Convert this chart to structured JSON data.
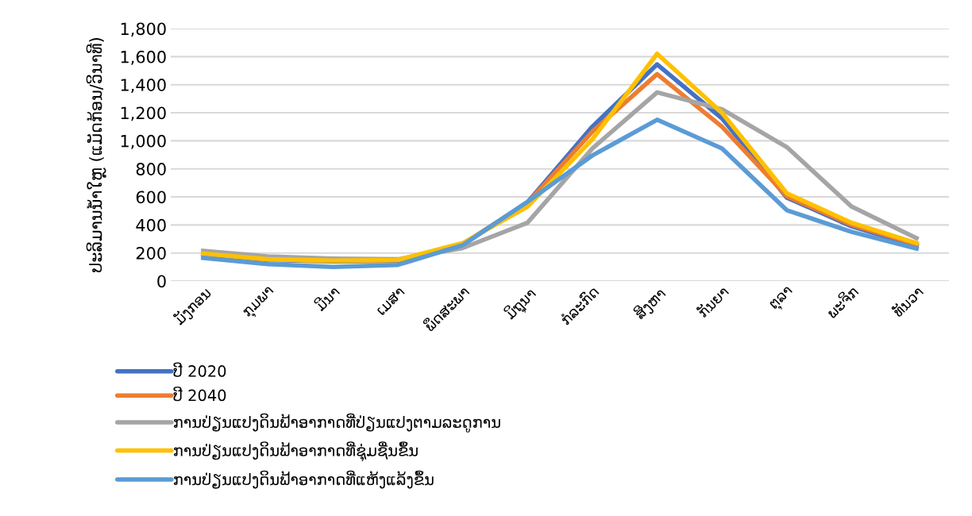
{
  "chart_data": {
    "type": "line",
    "ylabel": "ປະລິມານນ້ຳໃຫຼ (ແມັດກ້ອນ/ວິນາທີ)",
    "categories": [
      "ມັງກອນ",
      "ກຸມພາ",
      "ມີນາ",
      "ເມສາ",
      "ພຶດສະພາ",
      "ມິຖຸນາ",
      "ກໍລະກົດ",
      "ສິງຫາ",
      "ກັນຍາ",
      "ຕຸລາ",
      "ພະຈິກ",
      "ທັນວາ"
    ],
    "series": [
      {
        "name": "ປີ 2020",
        "color": "#4472c4",
        "values": [
          190,
          150,
          140,
          145,
          260,
          560,
          1100,
          1545,
          1160,
          595,
          390,
          250
        ]
      },
      {
        "name": "ປີ 2040",
        "color": "#ed7d31",
        "values": [
          195,
          155,
          145,
          150,
          262,
          555,
          1065,
          1475,
          1100,
          605,
          400,
          262
        ]
      },
      {
        "name": "ການປ່ຽນແປງດິນຟ້າອາກາດທີ່ປ່ຽນແປງຕາມລະດູການ",
        "color": "#a5a5a5",
        "values": [
          215,
          175,
          160,
          155,
          235,
          415,
          945,
          1345,
          1225,
          955,
          530,
          305
        ]
      },
      {
        "name": "ການປ່ຽນແປງດິນຟ້າອາກາດທີ່ຊຸ່ມຊື່ນຂຶ້ນ",
        "color": "#ffc000",
        "values": [
          195,
          155,
          145,
          150,
          270,
          530,
          1010,
          1620,
          1200,
          625,
          415,
          270
        ]
      },
      {
        "name": "ການປ່ຽນແປງດິນຟ້າອາກາດທີ່ແຫ້ງແລ້ງຂຶ້ນ",
        "color": "#5b9bd5",
        "values": [
          165,
          120,
          100,
          115,
          255,
          565,
          895,
          1150,
          945,
          505,
          350,
          232
        ]
      }
    ],
    "ylim": [
      0,
      1800
    ],
    "yticks": [
      {
        "value": 0,
        "label": "0"
      },
      {
        "value": 200,
        "label": "200"
      },
      {
        "value": 400,
        "label": "400"
      },
      {
        "value": 600,
        "label": "600"
      },
      {
        "value": 800,
        "label": "800"
      },
      {
        "value": 1000,
        "label": "1,000"
      },
      {
        "value": 1200,
        "label": "1,200"
      },
      {
        "value": 1400,
        "label": "1,400"
      },
      {
        "value": 1600,
        "label": "1,600"
      },
      {
        "value": 1800,
        "label": "1,800"
      }
    ],
    "grid": "y",
    "legend": "bottom left",
    "line_style": "solid"
  }
}
